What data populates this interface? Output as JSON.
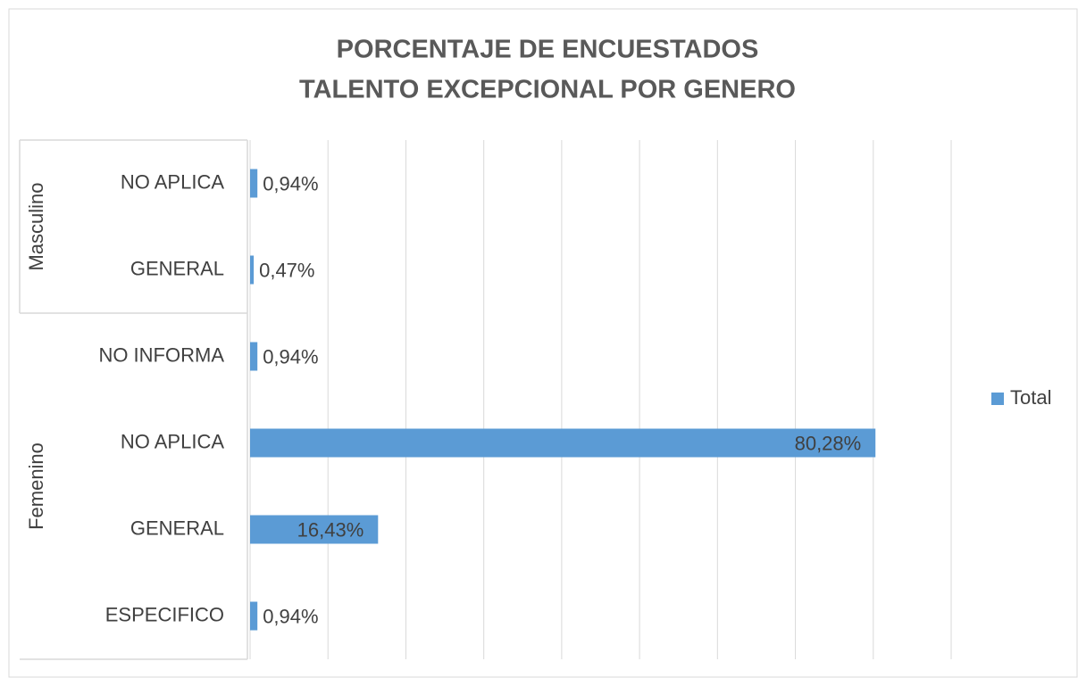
{
  "chart_data": {
    "type": "hbar",
    "title": "PORCENTAJE DE ENCUESTADOS",
    "subtitle": "TALENTO EXCEPCIONAL POR GENERO",
    "groups": [
      {
        "name": "Masculino",
        "categories": [
          "NO APLICA",
          "GENERAL"
        ]
      },
      {
        "name": "Femenino",
        "categories": [
          "NO INFORMA",
          "NO APLICA",
          "GENERAL",
          "ESPECIFICO"
        ]
      }
    ],
    "series": [
      {
        "name": "Total",
        "color": "#5b9bd5",
        "values": [
          0.94,
          0.47,
          0.94,
          80.28,
          16.43,
          0.94
        ],
        "value_labels": [
          "0,94%",
          "0,47%",
          "0,94%",
          "80,28%",
          "16,43%",
          "0,94%"
        ]
      }
    ],
    "xlim": [
      0,
      90
    ],
    "xticks": [
      0,
      10,
      20,
      30,
      40,
      50,
      60,
      70,
      80,
      90
    ],
    "grid": true,
    "legend": "right"
  }
}
